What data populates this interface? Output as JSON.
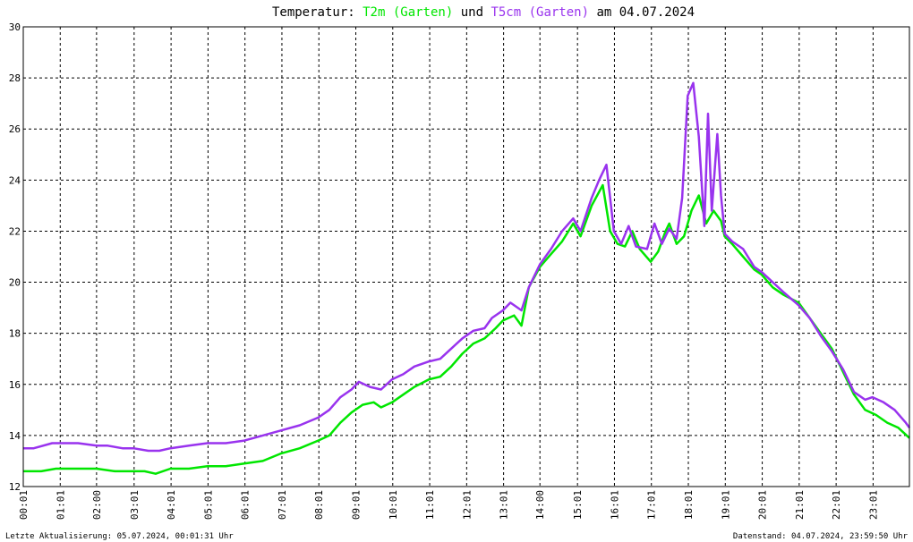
{
  "header": {
    "prefix": "Temperatur: ",
    "series1_label": "T2m (Garten)",
    "connector": " und ",
    "series2_label": "T5cm (Garten)",
    "suffix": " am 04.07.2024"
  },
  "footer": {
    "left": "Letzte Aktualisierung: 05.07.2024, 00:01:31 Uhr",
    "right": "Datenstand: 04.07.2024, 23:59:50 Uhr"
  },
  "chart_data": {
    "type": "line",
    "title": "Temperatur: T2m (Garten) und T5cm (Garten) am 04.07.2024",
    "xlabel": "",
    "ylabel": "",
    "xlim": [
      0.0167,
      24.0
    ],
    "ylim": [
      12,
      30
    ],
    "grid": true,
    "legend": "none",
    "y_ticks": [
      12,
      14,
      16,
      18,
      20,
      22,
      24,
      26,
      28,
      30
    ],
    "x_tick_labels": [
      "00:01",
      "01:01",
      "02:00",
      "03:01",
      "04:01",
      "05:01",
      "06:01",
      "07:01",
      "08:01",
      "09:01",
      "10:01",
      "11:01",
      "12:01",
      "13:01",
      "14:00",
      "15:01",
      "16:01",
      "17:01",
      "18:01",
      "19:01",
      "20:01",
      "21:01",
      "22:01",
      "23:01"
    ],
    "x_tick_hours": [
      0.0167,
      1.0167,
      2.0,
      3.0167,
      4.0167,
      5.0167,
      6.0167,
      7.0167,
      8.0167,
      9.0167,
      10.0167,
      11.0167,
      12.0167,
      13.0167,
      14.0,
      15.0167,
      16.0167,
      17.0167,
      18.0167,
      19.0167,
      20.0167,
      21.0167,
      22.0167,
      23.0167
    ],
    "series": [
      {
        "name": "T2m (Garten)",
        "color": "#00e600",
        "x": [
          0.0167,
          0.5,
          0.9,
          1.2,
          2.0,
          2.5,
          3.0,
          3.3,
          3.6,
          4.0,
          4.5,
          5.0,
          5.5,
          6.0,
          6.5,
          7.0,
          7.5,
          8.0,
          8.3,
          8.6,
          8.9,
          9.2,
          9.5,
          9.7,
          10.0,
          10.3,
          10.6,
          11.0,
          11.3,
          11.6,
          11.9,
          12.2,
          12.5,
          12.8,
          13.0,
          13.3,
          13.5,
          13.7,
          14.0,
          14.3,
          14.6,
          14.9,
          15.1,
          15.4,
          15.7,
          15.9,
          16.1,
          16.3,
          16.5,
          16.7,
          17.0,
          17.2,
          17.4,
          17.5,
          17.7,
          17.9,
          18.1,
          18.3,
          18.5,
          18.7,
          18.9,
          19.0,
          19.2,
          19.5,
          19.8,
          20.0,
          20.3,
          20.6,
          21.0,
          21.3,
          21.6,
          21.9,
          22.2,
          22.5,
          22.8,
          23.1,
          23.4,
          23.7,
          24.0
        ],
        "y": [
          12.6,
          12.6,
          12.7,
          12.7,
          12.7,
          12.6,
          12.6,
          12.6,
          12.5,
          12.7,
          12.7,
          12.8,
          12.8,
          12.9,
          13.0,
          13.3,
          13.5,
          13.8,
          14.0,
          14.5,
          14.9,
          15.2,
          15.3,
          15.1,
          15.3,
          15.6,
          15.9,
          16.2,
          16.3,
          16.7,
          17.2,
          17.6,
          17.8,
          18.2,
          18.5,
          18.7,
          18.3,
          19.8,
          20.6,
          21.1,
          21.6,
          22.3,
          21.8,
          23.0,
          23.8,
          22.0,
          21.5,
          21.4,
          22.0,
          21.3,
          20.8,
          21.2,
          22.0,
          22.3,
          21.5,
          21.8,
          22.8,
          23.4,
          22.3,
          22.8,
          22.4,
          21.8,
          21.5,
          21.0,
          20.5,
          20.3,
          19.8,
          19.5,
          19.2,
          18.6,
          18.0,
          17.4,
          16.5,
          15.6,
          15.0,
          14.8,
          14.5,
          14.3,
          13.9
        ]
      },
      {
        "name": "T5cm (Garten)",
        "color": "#9933ee",
        "x": [
          0.0167,
          0.3,
          0.8,
          1.5,
          2.0,
          2.3,
          2.7,
          3.0,
          3.4,
          3.7,
          4.0,
          4.5,
          5.0,
          5.5,
          6.0,
          6.5,
          7.0,
          7.5,
          8.0,
          8.3,
          8.6,
          8.9,
          9.1,
          9.4,
          9.7,
          10.0,
          10.3,
          10.6,
          11.0,
          11.3,
          11.6,
          11.9,
          12.2,
          12.5,
          12.7,
          13.0,
          13.2,
          13.5,
          13.7,
          14.0,
          14.3,
          14.6,
          14.9,
          15.1,
          15.4,
          15.6,
          15.8,
          16.0,
          16.2,
          16.4,
          16.6,
          16.9,
          17.1,
          17.3,
          17.5,
          17.7,
          17.85,
          18.0,
          18.15,
          18.3,
          18.45,
          18.55,
          18.65,
          18.8,
          18.9,
          19.0,
          19.2,
          19.5,
          19.8,
          20.0,
          20.3,
          20.6,
          21.0,
          21.3,
          21.6,
          21.9,
          22.2,
          22.5,
          22.8,
          23.0,
          23.3,
          23.6,
          23.9,
          24.0
        ],
        "y": [
          13.5,
          13.5,
          13.7,
          13.7,
          13.6,
          13.6,
          13.5,
          13.5,
          13.4,
          13.4,
          13.5,
          13.6,
          13.7,
          13.7,
          13.8,
          14.0,
          14.2,
          14.4,
          14.7,
          15.0,
          15.5,
          15.8,
          16.1,
          15.9,
          15.8,
          16.2,
          16.4,
          16.7,
          16.9,
          17.0,
          17.4,
          17.8,
          18.1,
          18.2,
          18.6,
          18.9,
          19.2,
          18.9,
          19.8,
          20.7,
          21.3,
          22.0,
          22.5,
          22.0,
          23.3,
          24.0,
          24.6,
          22.0,
          21.5,
          22.2,
          21.4,
          21.3,
          22.3,
          21.5,
          22.1,
          21.7,
          23.3,
          27.3,
          27.8,
          25.7,
          22.2,
          26.6,
          22.8,
          25.8,
          23.4,
          21.9,
          21.6,
          21.3,
          20.6,
          20.4,
          20.0,
          19.6,
          19.1,
          18.6,
          17.9,
          17.3,
          16.6,
          15.7,
          15.4,
          15.5,
          15.3,
          15.0,
          14.5,
          14.3
        ]
      }
    ]
  }
}
